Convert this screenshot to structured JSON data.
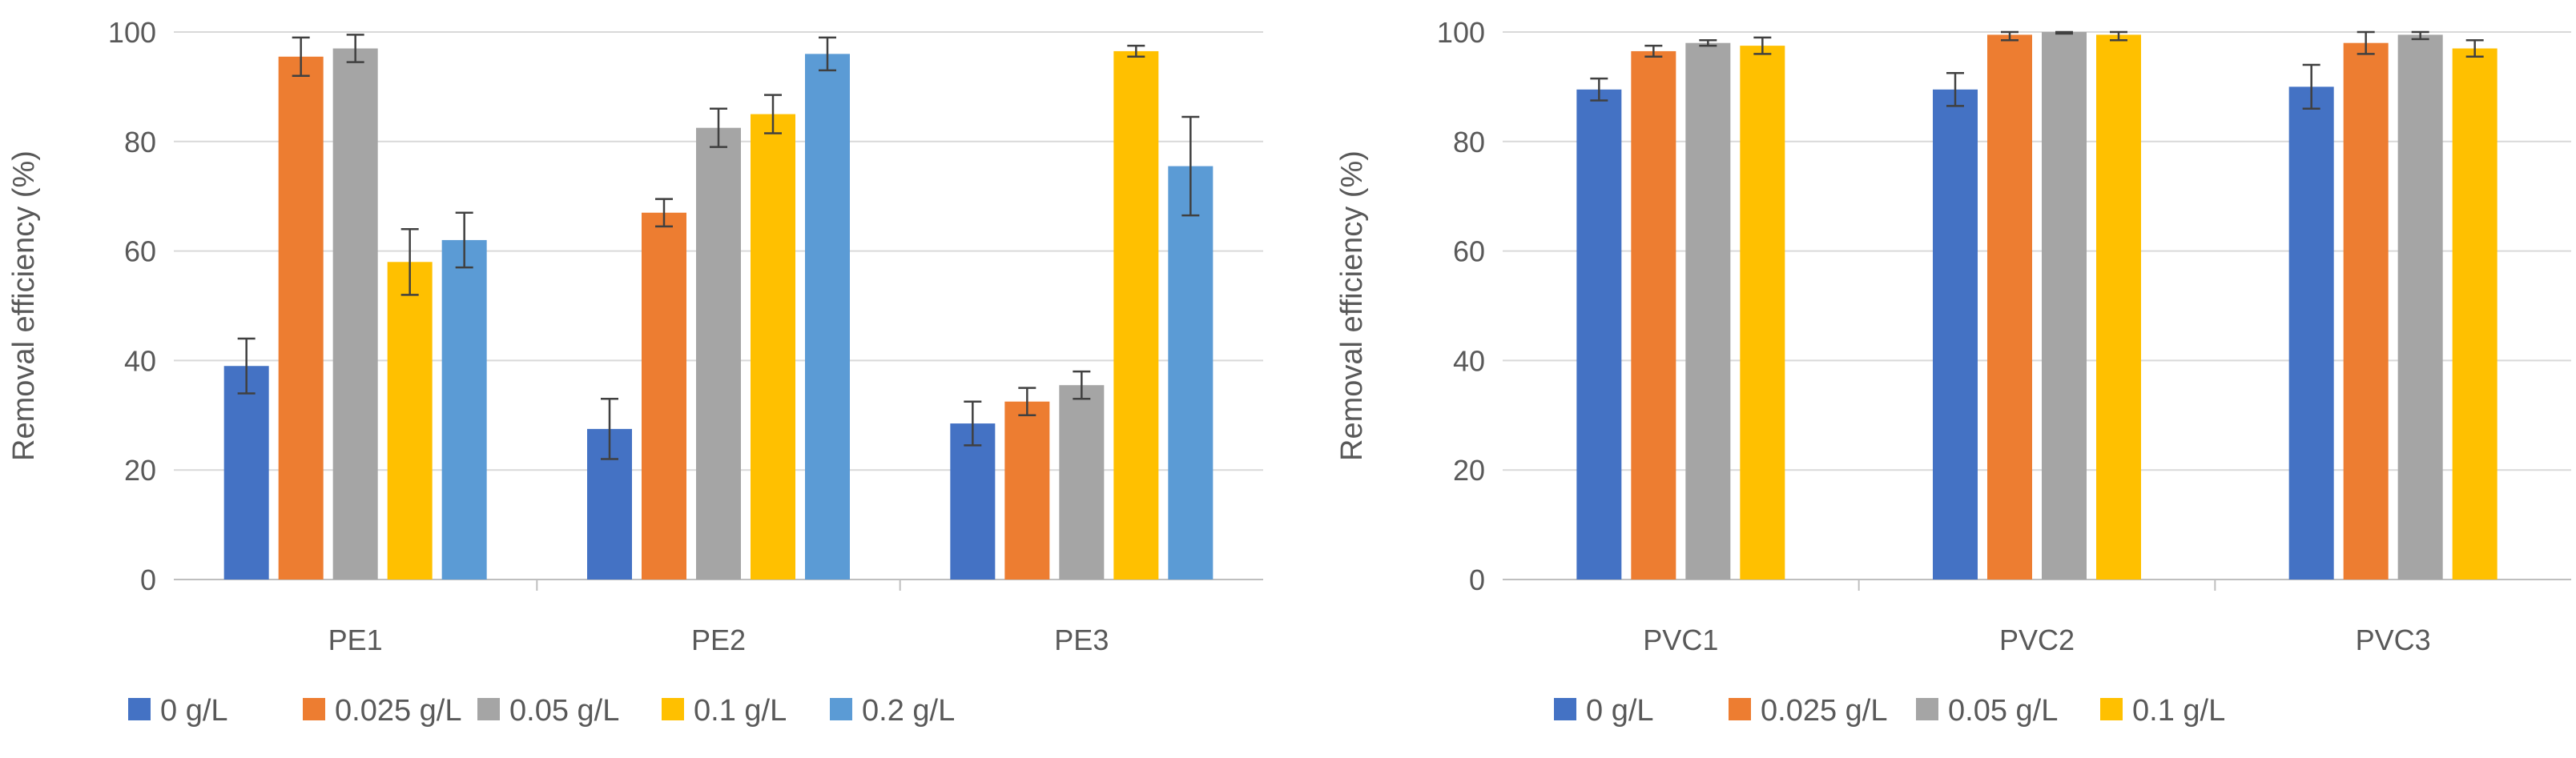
{
  "chart_data": [
    {
      "type": "bar",
      "title": "",
      "xlabel": "",
      "ylabel": "Removal efficiency (%)",
      "ylim": [
        0,
        100
      ],
      "yticks": [
        0,
        20,
        40,
        60,
        80,
        100
      ],
      "grid": true,
      "legend_position": "bottom",
      "categories": [
        "PE1",
        "PE2",
        "PE3"
      ],
      "series": [
        {
          "name": "0 g/L",
          "color": "#4472C4",
          "values": [
            39,
            27.5,
            28.5
          ],
          "errors": [
            5,
            5.5,
            4
          ]
        },
        {
          "name": "0.025 g/L",
          "color": "#ED7D31",
          "values": [
            95.5,
            67,
            32.5
          ],
          "errors": [
            3.5,
            2.5,
            2.5
          ]
        },
        {
          "name": "0.05 g/L",
          "color": "#A5A5A5",
          "values": [
            97,
            82.5,
            35.5
          ],
          "errors": [
            2.5,
            3.5,
            2.5
          ]
        },
        {
          "name": "0.1 g/L",
          "color": "#FFC000",
          "values": [
            58,
            85,
            96.5
          ],
          "errors": [
            6,
            3.5,
            1
          ]
        },
        {
          "name": "0.2 g/L",
          "color": "#5B9BD5",
          "values": [
            62,
            96,
            75.5
          ],
          "errors": [
            5,
            3,
            9
          ]
        }
      ]
    },
    {
      "type": "bar",
      "title": "",
      "xlabel": "",
      "ylabel": "Removal efficiency (%)",
      "ylim": [
        0,
        100
      ],
      "yticks": [
        0,
        20,
        40,
        60,
        80,
        100
      ],
      "grid": true,
      "legend_position": "bottom",
      "categories": [
        "PVC1",
        "PVC2",
        "PVC3"
      ],
      "series": [
        {
          "name": "0 g/L",
          "color": "#4472C4",
          "values": [
            89.5,
            89.5,
            90
          ],
          "errors": [
            2,
            3,
            4
          ]
        },
        {
          "name": "0.025 g/L",
          "color": "#ED7D31",
          "values": [
            96.5,
            99.5,
            98
          ],
          "errors": [
            1,
            1,
            2
          ]
        },
        {
          "name": "0.05 g/L",
          "color": "#A5A5A5",
          "values": [
            98,
            100,
            99.5
          ],
          "errors": [
            0.5,
            0.3,
            0.8
          ]
        },
        {
          "name": "0.1 g/L",
          "color": "#FFC000",
          "values": [
            97.5,
            99.5,
            97
          ],
          "errors": [
            1.5,
            1,
            1.5
          ]
        }
      ]
    }
  ]
}
